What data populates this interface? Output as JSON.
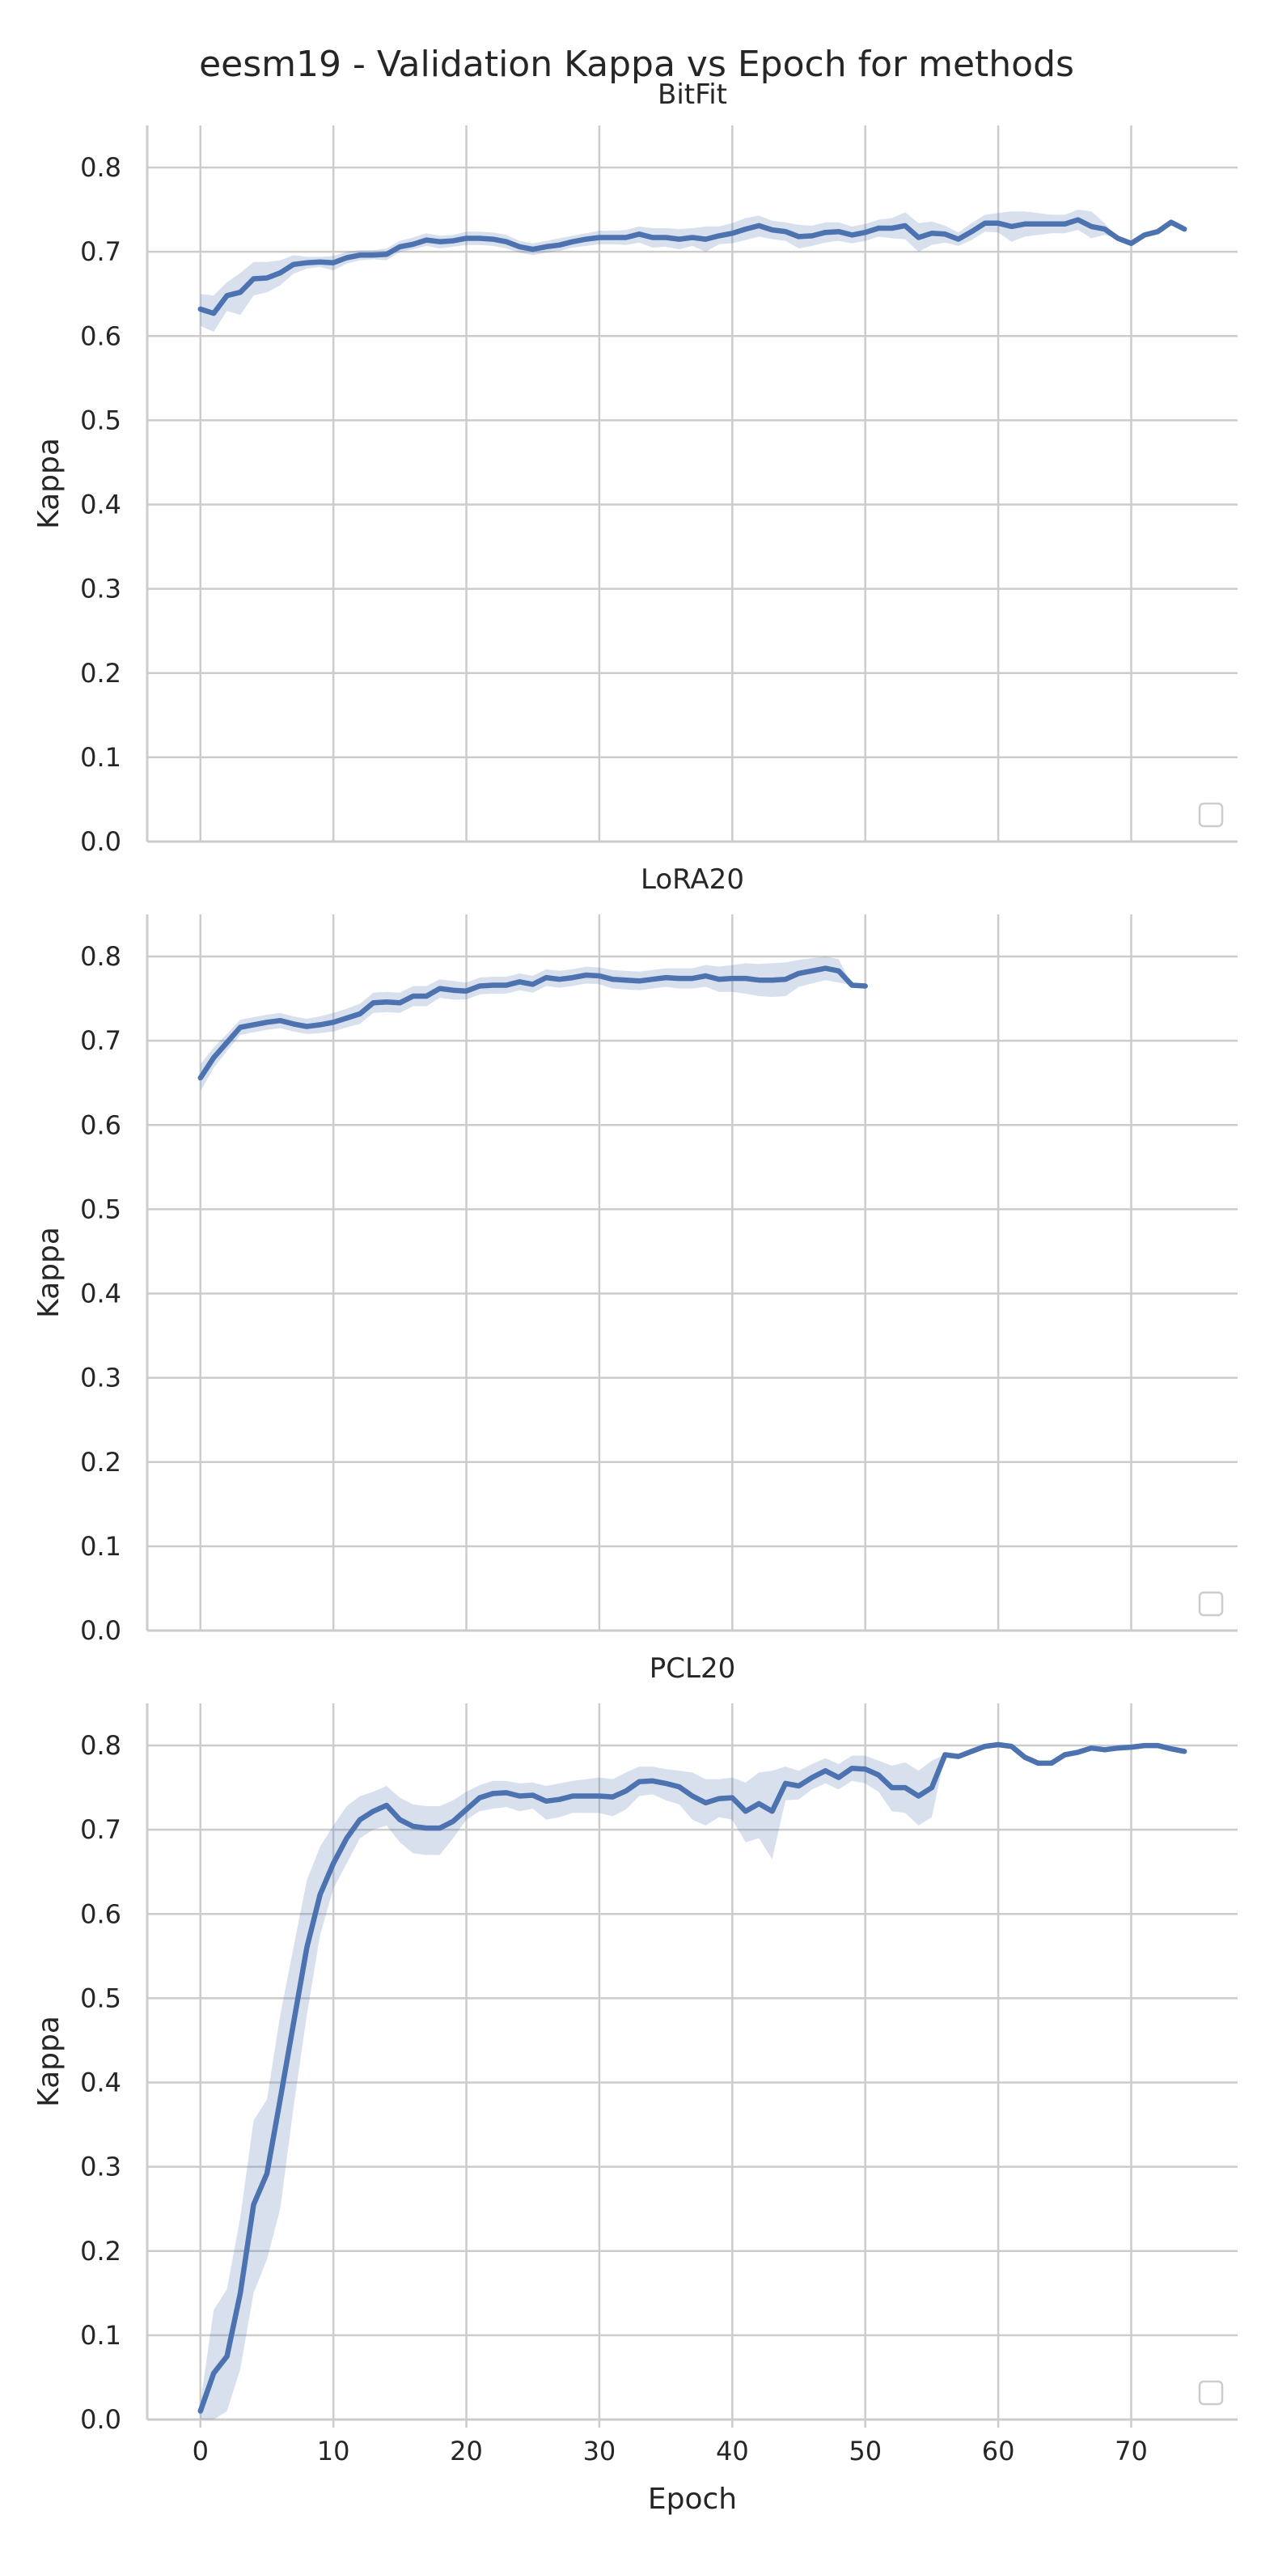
{
  "title": "eesm19 - Validation Kappa vs Epoch for methods",
  "colors": {
    "series": "#4c72b0",
    "grid": "#cccccc",
    "text": "#262626"
  },
  "chart_data": [
    {
      "type": "line",
      "title": "BitFit",
      "xlabel": "",
      "ylabel": "Kappa",
      "xlim": [
        -4,
        78
      ],
      "ylim": [
        0,
        0.85
      ],
      "xticks": [
        "0",
        "10",
        "20",
        "30",
        "40",
        "50",
        "60",
        "70"
      ],
      "yticks": [
        "0.0",
        "0.1",
        "0.2",
        "0.3",
        "0.4",
        "0.5",
        "0.6",
        "0.7",
        "0.8"
      ],
      "grid": true,
      "legend": "lower-right, empty",
      "series": [
        {
          "x": [
            0,
            1,
            2,
            3,
            4,
            5,
            6,
            7,
            8,
            9,
            10,
            11,
            12,
            13,
            14,
            15,
            16,
            17,
            18,
            19,
            20,
            21,
            22,
            23,
            24,
            25,
            26,
            27,
            28,
            29,
            30,
            31,
            32,
            33,
            34,
            35,
            36,
            37,
            38,
            39,
            40,
            41,
            42,
            43,
            44,
            45,
            46,
            47,
            48,
            49,
            50,
            51,
            52,
            53,
            54,
            55,
            56,
            57,
            58,
            59,
            60,
            61,
            62,
            63,
            64,
            65,
            66,
            67,
            68,
            69,
            70,
            71,
            72,
            73,
            74
          ],
          "y": [
            0.632,
            0.627,
            0.648,
            0.652,
            0.668,
            0.669,
            0.675,
            0.685,
            0.687,
            0.688,
            0.687,
            0.693,
            0.696,
            0.696,
            0.697,
            0.706,
            0.709,
            0.714,
            0.712,
            0.713,
            0.716,
            0.716,
            0.715,
            0.712,
            0.706,
            0.703,
            0.706,
            0.708,
            0.712,
            0.715,
            0.717,
            0.717,
            0.717,
            0.721,
            0.717,
            0.717,
            0.715,
            0.717,
            0.715,
            0.719,
            0.722,
            0.727,
            0.731,
            0.726,
            0.724,
            0.718,
            0.719,
            0.723,
            0.724,
            0.72,
            0.723,
            0.728,
            0.728,
            0.731,
            0.717,
            0.722,
            0.721,
            0.715,
            0.724,
            0.734,
            0.734,
            0.73,
            0.733,
            0.733,
            0.733,
            0.733,
            0.738,
            0.73,
            0.727,
            0.716,
            0.71,
            0.72,
            0.724,
            0.735,
            0.727
          ],
          "lower": [
            0.612,
            0.605,
            0.63,
            0.625,
            0.648,
            0.652,
            0.66,
            0.674,
            0.68,
            0.682,
            0.678,
            0.686,
            0.69,
            0.691,
            0.69,
            0.7,
            0.703,
            0.707,
            0.704,
            0.706,
            0.708,
            0.708,
            0.707,
            0.704,
            0.699,
            0.696,
            0.699,
            0.701,
            0.705,
            0.707,
            0.709,
            0.709,
            0.708,
            0.711,
            0.705,
            0.706,
            0.703,
            0.707,
            0.7,
            0.709,
            0.71,
            0.714,
            0.718,
            0.715,
            0.713,
            0.704,
            0.707,
            0.711,
            0.713,
            0.71,
            0.713,
            0.718,
            0.716,
            0.715,
            0.7,
            0.708,
            0.711,
            0.707,
            0.714,
            0.724,
            0.723,
            0.712,
            0.718,
            0.72,
            0.722,
            0.722,
            0.726,
            0.716,
            0.72,
            0.716,
            0.71,
            0.72,
            0.724,
            0.735,
            0.727
          ],
          "upper": [
            0.65,
            0.648,
            0.664,
            0.675,
            0.688,
            0.688,
            0.69,
            0.696,
            0.694,
            0.694,
            0.695,
            0.7,
            0.702,
            0.702,
            0.704,
            0.713,
            0.717,
            0.722,
            0.719,
            0.72,
            0.724,
            0.724,
            0.723,
            0.72,
            0.713,
            0.71,
            0.713,
            0.716,
            0.719,
            0.722,
            0.725,
            0.725,
            0.726,
            0.73,
            0.728,
            0.728,
            0.727,
            0.728,
            0.73,
            0.73,
            0.734,
            0.74,
            0.743,
            0.737,
            0.735,
            0.732,
            0.731,
            0.735,
            0.735,
            0.73,
            0.733,
            0.738,
            0.74,
            0.747,
            0.734,
            0.736,
            0.731,
            0.723,
            0.734,
            0.744,
            0.746,
            0.748,
            0.748,
            0.746,
            0.744,
            0.744,
            0.75,
            0.748,
            0.734,
            0.716,
            0.71,
            0.72,
            0.724,
            0.735,
            0.727
          ]
        }
      ]
    },
    {
      "type": "line",
      "title": "LoRA20",
      "xlabel": "",
      "ylabel": "Kappa",
      "xlim": [
        -4,
        78
      ],
      "ylim": [
        0,
        0.85
      ],
      "xticks": [
        "0",
        "10",
        "20",
        "30",
        "40",
        "50",
        "60",
        "70"
      ],
      "yticks": [
        "0.0",
        "0.1",
        "0.2",
        "0.3",
        "0.4",
        "0.5",
        "0.6",
        "0.7",
        "0.8"
      ],
      "grid": true,
      "legend": "lower-right, empty",
      "series": [
        {
          "x": [
            0,
            1,
            2,
            3,
            4,
            5,
            6,
            7,
            8,
            9,
            10,
            11,
            12,
            13,
            14,
            15,
            16,
            17,
            18,
            19,
            20,
            21,
            22,
            23,
            24,
            25,
            26,
            27,
            28,
            29,
            30,
            31,
            32,
            33,
            34,
            35,
            36,
            37,
            38,
            39,
            40,
            41,
            42,
            43,
            44,
            45,
            46,
            47,
            48,
            49,
            50
          ],
          "y": [
            0.656,
            0.68,
            0.698,
            0.716,
            0.719,
            0.722,
            0.724,
            0.72,
            0.717,
            0.719,
            0.722,
            0.727,
            0.732,
            0.745,
            0.746,
            0.745,
            0.753,
            0.753,
            0.762,
            0.76,
            0.759,
            0.765,
            0.766,
            0.766,
            0.77,
            0.767,
            0.775,
            0.773,
            0.775,
            0.778,
            0.777,
            0.773,
            0.772,
            0.771,
            0.773,
            0.775,
            0.774,
            0.774,
            0.777,
            0.773,
            0.774,
            0.774,
            0.772,
            0.772,
            0.773,
            0.78,
            0.783,
            0.786,
            0.783,
            0.766,
            0.765
          ],
          "lower": [
            0.64,
            0.668,
            0.688,
            0.707,
            0.71,
            0.713,
            0.715,
            0.711,
            0.708,
            0.709,
            0.711,
            0.716,
            0.72,
            0.733,
            0.734,
            0.733,
            0.741,
            0.741,
            0.751,
            0.749,
            0.749,
            0.755,
            0.756,
            0.756,
            0.76,
            0.757,
            0.765,
            0.763,
            0.765,
            0.768,
            0.767,
            0.762,
            0.761,
            0.76,
            0.762,
            0.764,
            0.762,
            0.762,
            0.764,
            0.758,
            0.758,
            0.756,
            0.753,
            0.752,
            0.753,
            0.764,
            0.768,
            0.772,
            0.769,
            0.766,
            0.765
          ],
          "upper": [
            0.672,
            0.692,
            0.708,
            0.725,
            0.728,
            0.731,
            0.733,
            0.729,
            0.726,
            0.729,
            0.733,
            0.738,
            0.744,
            0.757,
            0.758,
            0.757,
            0.765,
            0.765,
            0.773,
            0.771,
            0.769,
            0.775,
            0.776,
            0.776,
            0.78,
            0.777,
            0.785,
            0.783,
            0.785,
            0.788,
            0.787,
            0.784,
            0.783,
            0.782,
            0.784,
            0.786,
            0.786,
            0.786,
            0.79,
            0.788,
            0.79,
            0.792,
            0.791,
            0.792,
            0.793,
            0.796,
            0.798,
            0.8,
            0.797,
            0.766,
            0.765
          ]
        }
      ]
    },
    {
      "type": "line",
      "title": "PCL20",
      "xlabel": "Epoch",
      "ylabel": "Kappa",
      "xlim": [
        -4,
        78
      ],
      "ylim": [
        0,
        0.85
      ],
      "xticks": [
        "0",
        "10",
        "20",
        "30",
        "40",
        "50",
        "60",
        "70"
      ],
      "yticks": [
        "0.0",
        "0.1",
        "0.2",
        "0.3",
        "0.4",
        "0.5",
        "0.6",
        "0.7",
        "0.8"
      ],
      "grid": true,
      "legend": "lower-right, empty",
      "series": [
        {
          "x": [
            0,
            1,
            2,
            3,
            4,
            5,
            6,
            7,
            8,
            9,
            10,
            11,
            12,
            13,
            14,
            15,
            16,
            17,
            18,
            19,
            20,
            21,
            22,
            23,
            24,
            25,
            26,
            27,
            28,
            29,
            30,
            31,
            32,
            33,
            34,
            35,
            36,
            37,
            38,
            39,
            40,
            41,
            42,
            43,
            44,
            45,
            46,
            47,
            48,
            49,
            50,
            51,
            52,
            53,
            54,
            55,
            56,
            57,
            58,
            59,
            60,
            61,
            62,
            63,
            64,
            65,
            66,
            67,
            68,
            69,
            70,
            71,
            72,
            73,
            74
          ],
          "y": [
            0.01,
            0.055,
            0.075,
            0.15,
            0.255,
            0.292,
            0.38,
            0.47,
            0.56,
            0.623,
            0.66,
            0.69,
            0.712,
            0.722,
            0.729,
            0.712,
            0.704,
            0.702,
            0.702,
            0.71,
            0.724,
            0.738,
            0.743,
            0.744,
            0.74,
            0.741,
            0.734,
            0.736,
            0.74,
            0.74,
            0.74,
            0.739,
            0.746,
            0.757,
            0.758,
            0.755,
            0.751,
            0.74,
            0.732,
            0.737,
            0.738,
            0.722,
            0.731,
            0.722,
            0.755,
            0.752,
            0.762,
            0.77,
            0.762,
            0.773,
            0.772,
            0.765,
            0.75,
            0.75,
            0.74,
            0.75,
            0.789,
            0.787,
            0.793,
            0.799,
            0.801,
            0.799,
            0.786,
            0.779,
            0.779,
            0.789,
            0.792,
            0.797,
            0.795,
            0.797,
            0.798,
            0.8,
            0.8,
            0.796,
            0.793
          ],
          "lower": [
            0.0,
            0.0,
            0.01,
            0.06,
            0.15,
            0.19,
            0.25,
            0.37,
            0.48,
            0.575,
            0.63,
            0.66,
            0.69,
            0.7,
            0.705,
            0.685,
            0.672,
            0.67,
            0.67,
            0.69,
            0.712,
            0.722,
            0.725,
            0.727,
            0.722,
            0.725,
            0.712,
            0.715,
            0.72,
            0.72,
            0.72,
            0.716,
            0.724,
            0.74,
            0.742,
            0.735,
            0.73,
            0.712,
            0.705,
            0.715,
            0.712,
            0.685,
            0.69,
            0.665,
            0.735,
            0.736,
            0.748,
            0.755,
            0.748,
            0.758,
            0.755,
            0.745,
            0.722,
            0.72,
            0.705,
            0.715,
            0.789,
            0.787,
            0.793,
            0.799,
            0.801,
            0.799,
            0.786,
            0.779,
            0.779,
            0.789,
            0.792,
            0.797,
            0.795,
            0.797,
            0.798,
            0.8,
            0.8,
            0.796,
            0.793
          ],
          "upper": [
            0.02,
            0.13,
            0.155,
            0.24,
            0.355,
            0.38,
            0.48,
            0.56,
            0.64,
            0.68,
            0.705,
            0.728,
            0.74,
            0.745,
            0.752,
            0.738,
            0.73,
            0.728,
            0.728,
            0.735,
            0.745,
            0.753,
            0.758,
            0.758,
            0.755,
            0.756,
            0.752,
            0.755,
            0.758,
            0.76,
            0.762,
            0.76,
            0.768,
            0.775,
            0.775,
            0.772,
            0.77,
            0.768,
            0.76,
            0.76,
            0.762,
            0.756,
            0.768,
            0.77,
            0.775,
            0.77,
            0.778,
            0.785,
            0.778,
            0.788,
            0.788,
            0.782,
            0.776,
            0.78,
            0.77,
            0.782,
            0.789,
            0.787,
            0.793,
            0.799,
            0.801,
            0.799,
            0.786,
            0.779,
            0.779,
            0.789,
            0.792,
            0.797,
            0.795,
            0.797,
            0.798,
            0.8,
            0.8,
            0.796,
            0.793
          ]
        }
      ]
    }
  ]
}
